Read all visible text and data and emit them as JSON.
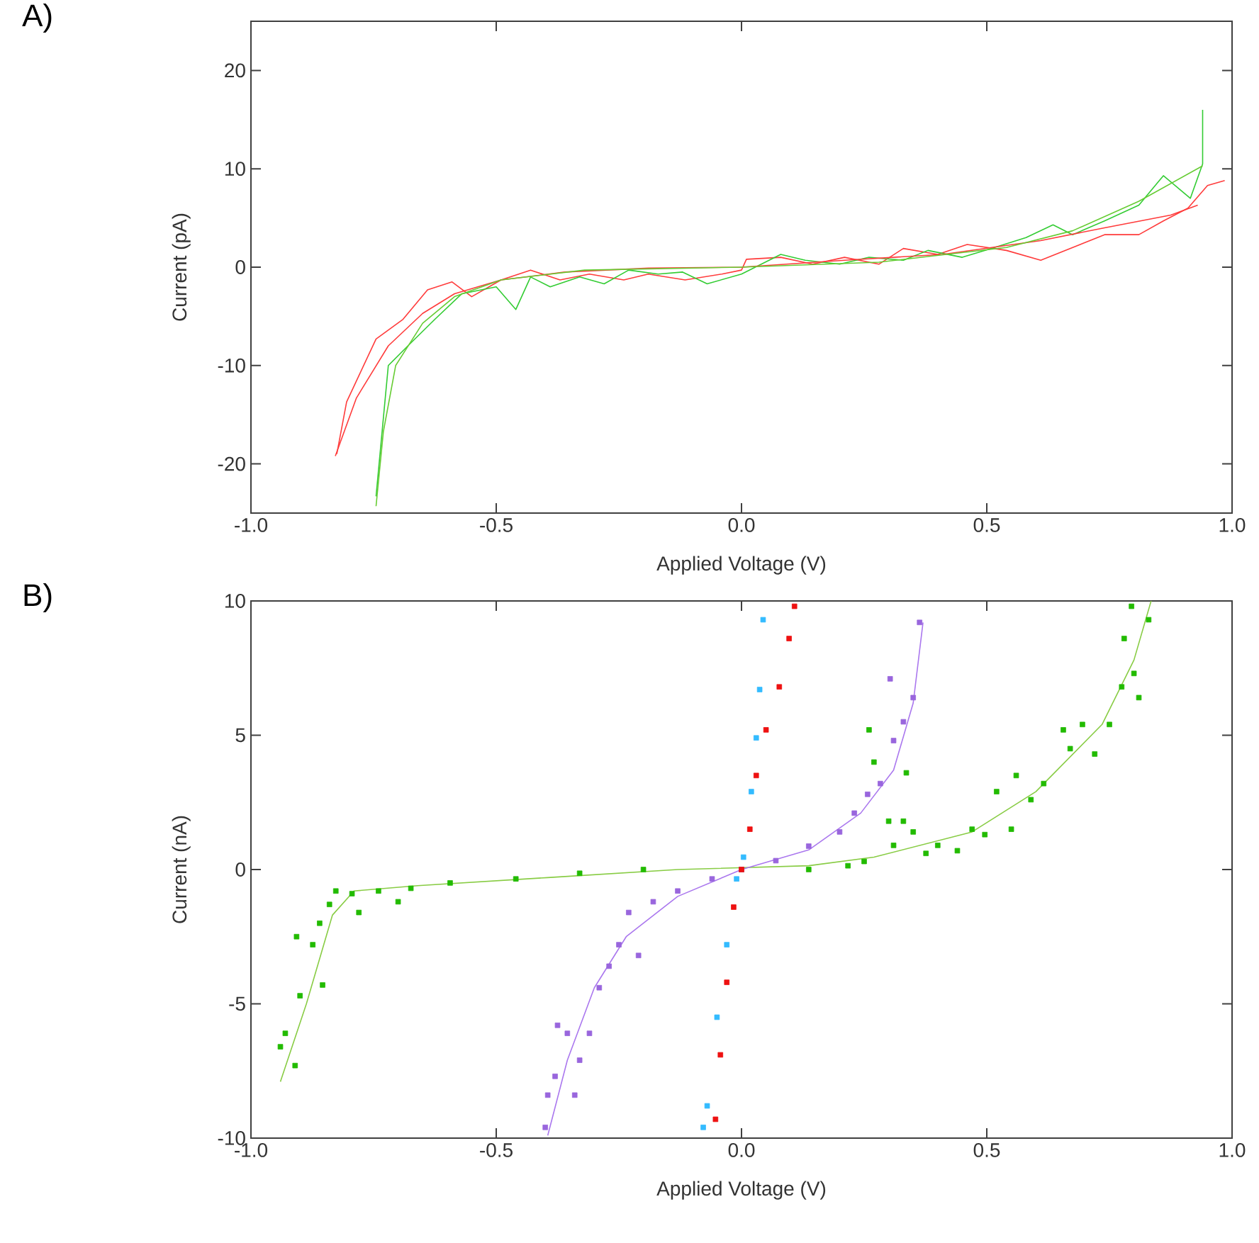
{
  "chart_data": [
    {
      "type": "line",
      "title": "A)",
      "xlabel": "Applied Voltage (V)",
      "ylabel": "Current (pA)",
      "xlim": [
        -1,
        1
      ],
      "ylim": [
        -25,
        25
      ],
      "xticks": [
        {
          "value": -1,
          "label": "-1.0"
        },
        {
          "value": -0.5,
          "label": "-0.5"
        },
        {
          "value": 0,
          "label": "0.0"
        },
        {
          "value": 0.5,
          "label": "0.5"
        },
        {
          "value": 1,
          "label": "1.0"
        }
      ],
      "yticks": [
        -20,
        -10,
        0,
        10,
        20
      ],
      "series": [
        {
          "color": "#ff3b3b",
          "x": [
            -0.825,
            -0.805,
            -0.745,
            -0.69,
            -0.64,
            -0.59,
            -0.55,
            -0.49,
            -0.43,
            -0.37,
            -0.31,
            -0.24,
            -0.19,
            -0.115,
            -0.04,
            0,
            0.01,
            0.08,
            0.145,
            0.21,
            0.28,
            0.33,
            0.4,
            0.46,
            0.54,
            0.61,
            0.675,
            0.74,
            0.81,
            0.86,
            0.91,
            0.95,
            0.985
          ],
          "values": [
            -19,
            -13.7,
            -7.3,
            -5.3,
            -2.3,
            -1.5,
            -3,
            -1.3,
            -0.3,
            -1.3,
            -0.7,
            -1.3,
            -0.7,
            -1.3,
            -0.7,
            -0.3,
            0.8,
            1,
            0.3,
            1,
            0.3,
            1.9,
            1.3,
            2.3,
            1.7,
            0.7,
            2,
            3.3,
            3.3,
            4.7,
            6,
            8.3,
            8.8
          ]
        },
        {
          "color": "#33cc33",
          "x": [
            -0.745,
            -0.73,
            -0.72,
            -0.68,
            -0.625,
            -0.57,
            -0.5,
            -0.46,
            -0.43,
            -0.39,
            -0.33,
            -0.28,
            -0.23,
            -0.17,
            -0.12,
            -0.07,
            0,
            0.08,
            0.13,
            0.2,
            0.26,
            0.33,
            0.38,
            0.45,
            0.51,
            0.58,
            0.635,
            0.675,
            0.74,
            0.81,
            0.86,
            0.915,
            0.94,
            0.94
          ],
          "values": [
            -23.3,
            -15.3,
            -10,
            -8,
            -5.3,
            -2.7,
            -2,
            -4.3,
            -1,
            -2,
            -1,
            -1.7,
            -0.3,
            -0.7,
            -0.5,
            -1.7,
            -0.7,
            1.3,
            0.7,
            0.3,
            1,
            0.7,
            1.7,
            1,
            1.9,
            3,
            4.3,
            3.3,
            4.7,
            6.3,
            9.3,
            7,
            10.5,
            16
          ]
        },
        {
          "color": "#ff3b3b",
          "x": [
            -0.828,
            -0.785,
            -0.72,
            -0.65,
            -0.585,
            -0.49,
            -0.36,
            -0.19,
            0,
            0.21,
            0.41,
            0.61,
            0.74,
            0.875,
            0.93
          ],
          "values": [
            -19.2,
            -13.3,
            -8,
            -4.7,
            -2.7,
            -1.3,
            -0.5,
            -0.1,
            0,
            0.7,
            1.3,
            2.7,
            4,
            5.3,
            6.3
          ]
        },
        {
          "color": "#66cc33",
          "x": [
            -0.745,
            -0.73,
            -0.705,
            -0.65,
            -0.585,
            -0.49,
            -0.32,
            0,
            0.28,
            0.54,
            0.675,
            0.81,
            0.94
          ],
          "values": [
            -24.3,
            -16.7,
            -10,
            -5.7,
            -3,
            -1.3,
            -0.3,
            0,
            0.5,
            2,
            3.7,
            6.7,
            10.3
          ]
        }
      ]
    },
    {
      "type": "scatter",
      "title": "B)",
      "xlabel": "Applied Voltage (V)",
      "ylabel": "Current (nA)",
      "xlim": [
        -1,
        1
      ],
      "ylim": [
        -10,
        10
      ],
      "marker": "square",
      "xticks": [
        {
          "value": -1,
          "label": "-1.0"
        },
        {
          "value": -0.5,
          "label": "-0.5"
        },
        {
          "value": 0,
          "label": "0.0"
        },
        {
          "value": 0.5,
          "label": "0.5"
        },
        {
          "value": 1,
          "label": "1.0"
        }
      ],
      "yticks": [
        -10,
        -5,
        0,
        5,
        10
      ],
      "series": [
        {
          "color": "#22bb00",
          "x": [
            -0.94,
            -0.93,
            -0.91,
            -0.9,
            -0.907,
            -0.874,
            -0.86,
            -0.854,
            -0.84,
            -0.827,
            -0.794,
            -0.78,
            -0.74,
            -0.7,
            -0.674,
            -0.594,
            -0.46,
            -0.33,
            -0.2,
            0,
            0.137,
            0.217,
            0.25,
            0.26,
            0.27,
            0.3,
            0.31,
            0.33,
            0.336,
            0.35,
            0.376,
            0.4,
            0.44,
            0.47,
            0.496,
            0.52,
            0.55,
            0.56,
            0.59,
            0.616,
            0.656,
            0.67,
            0.695,
            0.72,
            0.75,
            0.775,
            0.78,
            0.8,
            0.81,
            0.795,
            0.83
          ],
          "values": [
            -6.6,
            -6.1,
            -7.3,
            -4.7,
            -2.5,
            -2.8,
            -2,
            -4.3,
            -1.3,
            -0.8,
            -0.9,
            -1.6,
            -0.8,
            -1.2,
            -0.7,
            -0.5,
            -0.35,
            -0.14,
            0,
            0,
            0,
            0.14,
            0.3,
            5.2,
            4,
            1.8,
            0.9,
            1.8,
            3.6,
            1.4,
            0.6,
            0.9,
            0.7,
            1.5,
            1.3,
            2.9,
            1.5,
            3.5,
            2.6,
            3.2,
            5.2,
            4.5,
            5.4,
            4.3,
            5.4,
            6.8,
            8.6,
            7.3,
            6.4,
            9.8,
            9.3
          ]
        },
        {
          "color": "#9966dd",
          "x": [
            -0.4,
            -0.395,
            -0.38,
            -0.375,
            -0.355,
            -0.34,
            -0.33,
            -0.31,
            -0.29,
            -0.27,
            -0.25,
            -0.23,
            -0.21,
            -0.18,
            -0.13,
            -0.06,
            0,
            0.07,
            0.137,
            0.2,
            0.23,
            0.257,
            0.283,
            0.303,
            0.31,
            0.33,
            0.35,
            0.363
          ],
          "values": [
            -9.6,
            -8.4,
            -7.7,
            -5.8,
            -6.1,
            -8.4,
            -7.1,
            -6.1,
            -4.4,
            -3.6,
            -2.8,
            -1.6,
            -3.2,
            -1.2,
            -0.8,
            -0.35,
            0,
            0.33,
            0.87,
            1.4,
            2.1,
            2.8,
            3.2,
            7.1,
            4.8,
            5.5,
            6.4,
            9.2
          ]
        },
        {
          "color": "#ee1111",
          "x": [
            -0.053,
            -0.043,
            -0.03,
            -0.016,
            0,
            0.017,
            0.03,
            0.05,
            0.077,
            0.097,
            0.108
          ],
          "values": [
            -9.3,
            -6.9,
            -4.2,
            -1.4,
            0,
            1.5,
            3.5,
            5.2,
            6.8,
            8.6,
            9.8
          ]
        },
        {
          "color": "#33bbff",
          "x": [
            -0.078,
            -0.07,
            -0.05,
            -0.03,
            -0.01,
            0.004,
            0.02,
            0.03,
            0.037,
            0.044
          ],
          "values": [
            -9.6,
            -8.8,
            -5.5,
            -2.8,
            -0.35,
            0.46,
            2.9,
            4.9,
            6.7,
            9.3
          ]
        },
        {
          "type": "line",
          "marker": "none",
          "color": "#88cc44",
          "x": [
            -0.94,
            -0.887,
            -0.834,
            -0.79,
            -0.66,
            -0.395,
            -0.13,
            0.137,
            0.27,
            0.47,
            0.6,
            0.735,
            0.8,
            0.835
          ],
          "values": [
            -7.9,
            -5,
            -1.7,
            -0.8,
            -0.6,
            -0.3,
            0,
            0.14,
            0.46,
            1.4,
            2.9,
            5.4,
            7.8,
            10
          ]
        },
        {
          "type": "line",
          "marker": "none",
          "color": "#aa77ee",
          "x": [
            -0.395,
            -0.355,
            -0.3,
            -0.235,
            -0.13,
            0,
            0.137,
            0.243,
            0.31,
            0.35,
            0.37
          ],
          "values": [
            -9.9,
            -7.1,
            -4.4,
            -2.5,
            -1,
            0,
            0.73,
            2.1,
            3.7,
            6.2,
            9.2
          ]
        }
      ]
    }
  ]
}
